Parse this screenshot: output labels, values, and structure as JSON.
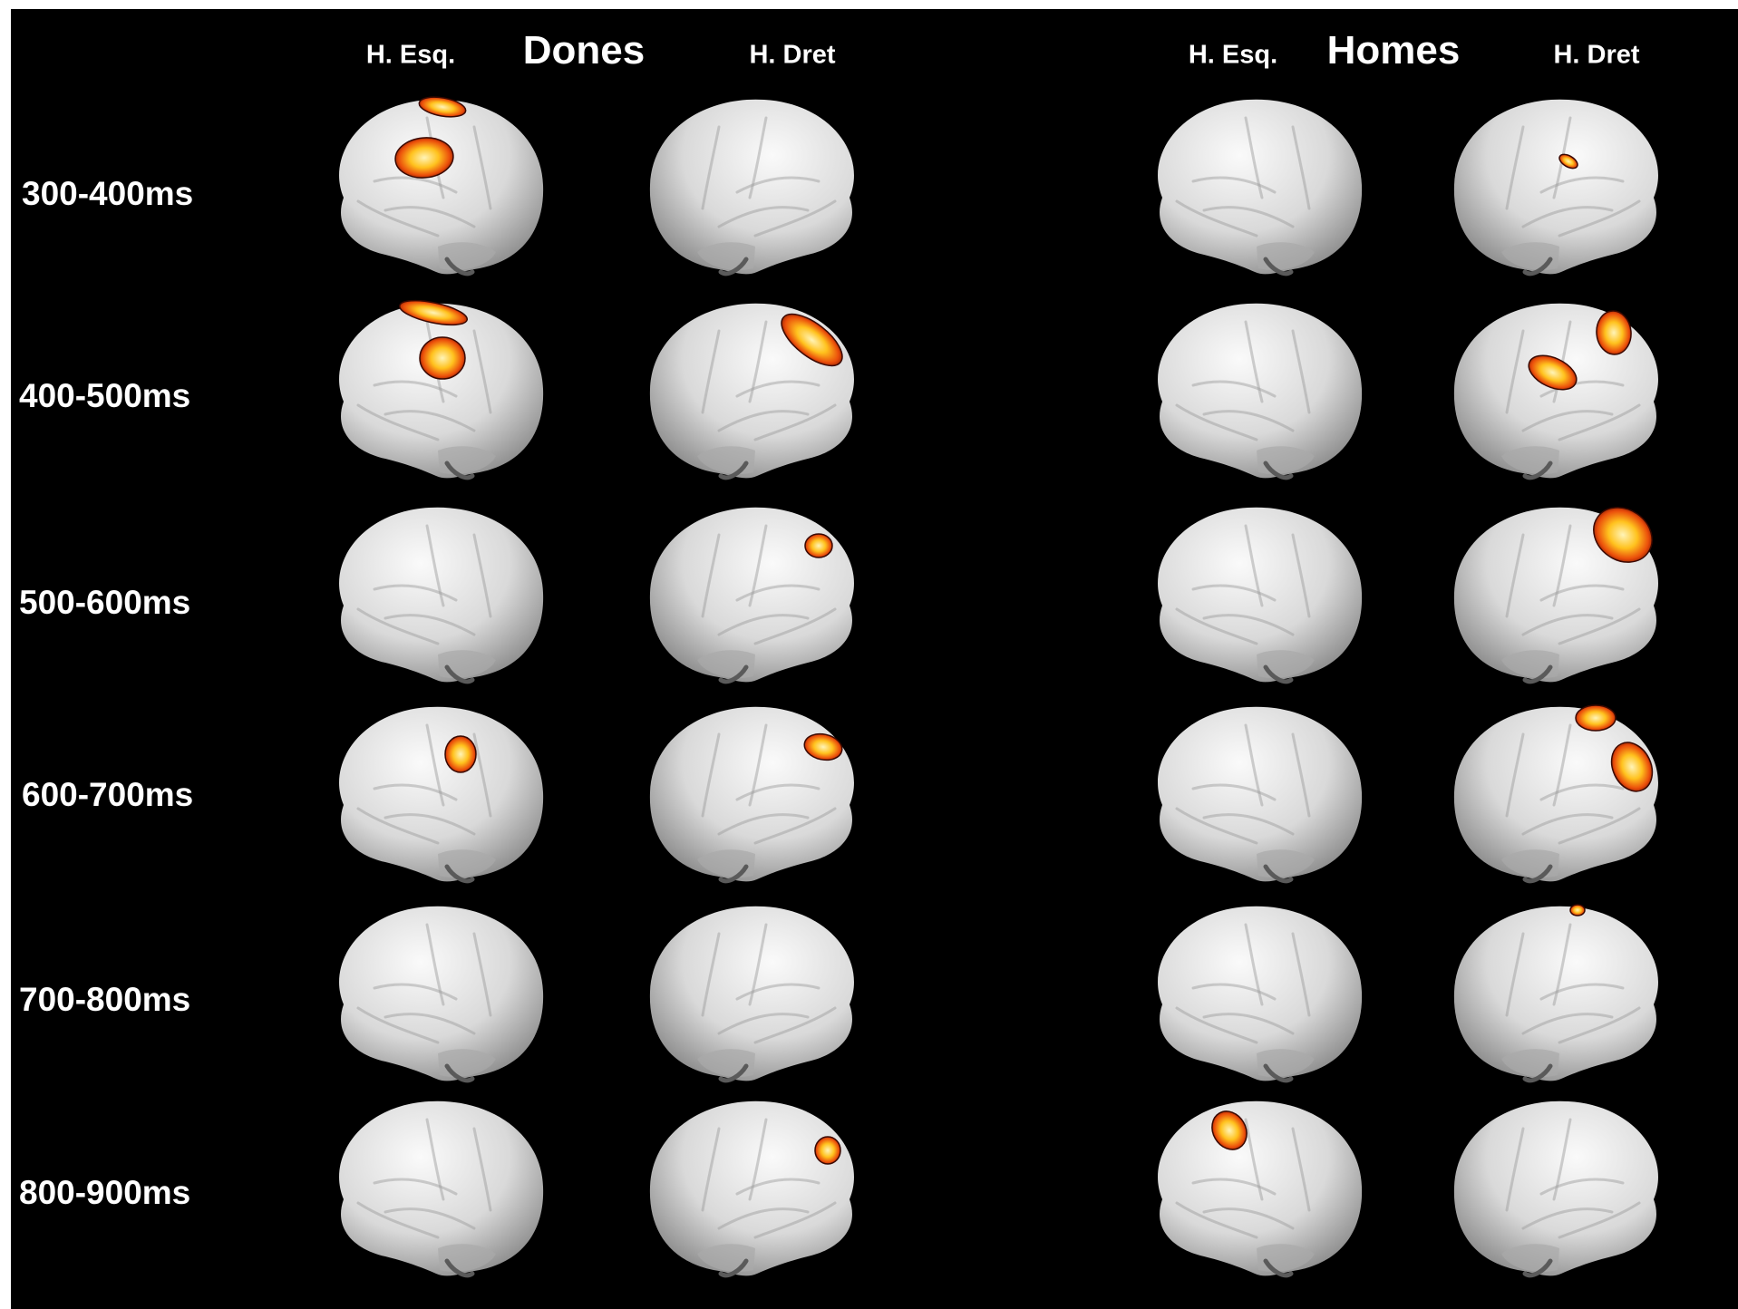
{
  "groups": [
    {
      "name": "Dones",
      "hemispheres": [
        "H. Esq.",
        "H. Dret"
      ]
    },
    {
      "name": "Homes",
      "hemispheres": [
        "H. Esq.",
        "H. Dret"
      ]
    }
  ],
  "time_windows": [
    "300-400ms",
    "400-500ms",
    "500-600ms",
    "600-700ms",
    "700-800ms",
    "800-900ms"
  ],
  "colors": {
    "background": "#000000",
    "brain_light": "#f2f2f2",
    "brain_dark": "#8a8a8a",
    "activation_outer": "#8b1a00",
    "activation_mid": "#e84a0c",
    "activation_core": "#ffe890"
  }
}
